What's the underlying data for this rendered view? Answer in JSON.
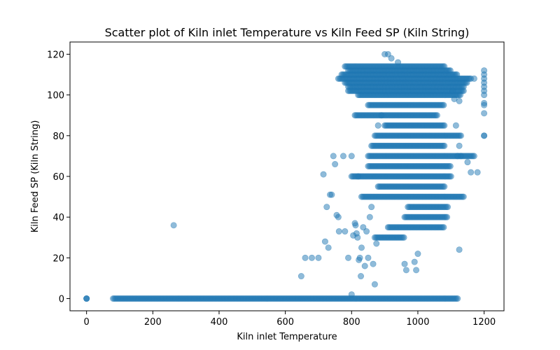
{
  "chart_data": {
    "type": "scatter",
    "title": "Scatter plot of Kiln inlet Temperature vs Kiln Feed  SP  (Kiln String)",
    "xlabel": "Kiln inlet Temperature",
    "ylabel": "Kiln Feed  SP  (Kiln String)",
    "xlim": [
      -50,
      1260
    ],
    "ylim": [
      -6,
      126
    ],
    "xticks": [
      0,
      200,
      400,
      600,
      800,
      1000,
      1200
    ],
    "yticks": [
      0,
      20,
      40,
      60,
      80,
      100,
      120
    ],
    "grid": false,
    "marker_color": "#1f77b4",
    "marker_alpha": 0.5,
    "series": [
      {
        "name": "Kiln Feed SP",
        "bands": [
          {
            "y": 0,
            "x_from": 80,
            "x_to": 1120
          },
          {
            "y": 50,
            "x_from": 830,
            "x_to": 1140
          },
          {
            "y": 60,
            "x_from": 800,
            "x_to": 1100
          },
          {
            "y": 65,
            "x_from": 850,
            "x_to": 1100
          },
          {
            "y": 70,
            "x_from": 850,
            "x_to": 1170
          },
          {
            "y": 75,
            "x_from": 860,
            "x_to": 1080
          },
          {
            "y": 80,
            "x_from": 870,
            "x_to": 1130
          },
          {
            "y": 85,
            "x_from": 900,
            "x_to": 1080
          },
          {
            "y": 90,
            "x_from": 810,
            "x_to": 1060
          },
          {
            "y": 95,
            "x_from": 850,
            "x_to": 1080
          },
          {
            "y": 100,
            "x_from": 820,
            "x_to": 1130
          },
          {
            "y": 102,
            "x_from": 790,
            "x_to": 1140
          },
          {
            "y": 104,
            "x_from": 790,
            "x_to": 1140
          },
          {
            "y": 106,
            "x_from": 780,
            "x_to": 1150
          },
          {
            "y": 108,
            "x_from": 760,
            "x_to": 1160
          },
          {
            "y": 110,
            "x_from": 770,
            "x_to": 1120
          },
          {
            "y": 112,
            "x_from": 790,
            "x_to": 1100
          },
          {
            "y": 114,
            "x_from": 780,
            "x_to": 1080
          },
          {
            "y": 45,
            "x_from": 970,
            "x_to": 1090
          },
          {
            "y": 40,
            "x_from": 960,
            "x_to": 1090
          },
          {
            "y": 35,
            "x_from": 910,
            "x_to": 1080
          },
          {
            "y": 30,
            "x_from": 870,
            "x_to": 960
          },
          {
            "y": 55,
            "x_from": 880,
            "x_to": 1080
          }
        ],
        "points": [
          [
            0,
            0
          ],
          [
            0,
            0
          ],
          [
            0,
            0
          ],
          [
            263,
            36
          ],
          [
            648,
            11
          ],
          [
            660,
            20
          ],
          [
            680,
            20
          ],
          [
            700,
            20
          ],
          [
            715,
            61
          ],
          [
            720,
            28
          ],
          [
            725,
            45
          ],
          [
            730,
            25
          ],
          [
            735,
            51
          ],
          [
            740,
            51
          ],
          [
            745,
            70
          ],
          [
            750,
            66
          ],
          [
            755,
            41
          ],
          [
            760,
            40
          ],
          [
            762,
            33
          ],
          [
            775,
            70
          ],
          [
            780,
            33
          ],
          [
            790,
            20
          ],
          [
            800,
            70
          ],
          [
            800,
            2
          ],
          [
            805,
            31
          ],
          [
            810,
            37
          ],
          [
            812,
            36
          ],
          [
            815,
            32
          ],
          [
            818,
            30
          ],
          [
            820,
            60
          ],
          [
            822,
            19
          ],
          [
            825,
            20
          ],
          [
            828,
            11
          ],
          [
            830,
            25
          ],
          [
            835,
            35
          ],
          [
            840,
            16
          ],
          [
            845,
            33
          ],
          [
            850,
            20
          ],
          [
            855,
            40
          ],
          [
            860,
            45
          ],
          [
            865,
            17
          ],
          [
            870,
            7
          ],
          [
            875,
            27
          ],
          [
            880,
            85
          ],
          [
            890,
            90
          ],
          [
            900,
            120
          ],
          [
            910,
            120
          ],
          [
            920,
            118
          ],
          [
            940,
            116
          ],
          [
            960,
            17
          ],
          [
            965,
            14
          ],
          [
            990,
            18
          ],
          [
            995,
            14
          ],
          [
            1000,
            22
          ],
          [
            1125,
            24
          ],
          [
            1150,
            67
          ],
          [
            1160,
            62
          ],
          [
            1170,
            108
          ],
          [
            1180,
            62
          ],
          [
            1200,
            112
          ],
          [
            1200,
            110
          ],
          [
            1200,
            108
          ],
          [
            1200,
            106
          ],
          [
            1200,
            104
          ],
          [
            1200,
            102
          ],
          [
            1200,
            100
          ],
          [
            1200,
            96
          ],
          [
            1200,
            95
          ],
          [
            1200,
            91
          ],
          [
            1200,
            80
          ],
          [
            1200,
            80
          ],
          [
            1105,
            102
          ],
          [
            1110,
            98
          ],
          [
            1125,
            97
          ],
          [
            1120,
            70
          ],
          [
            1130,
            70
          ],
          [
            1115,
            85
          ],
          [
            1125,
            75
          ]
        ]
      }
    ]
  }
}
